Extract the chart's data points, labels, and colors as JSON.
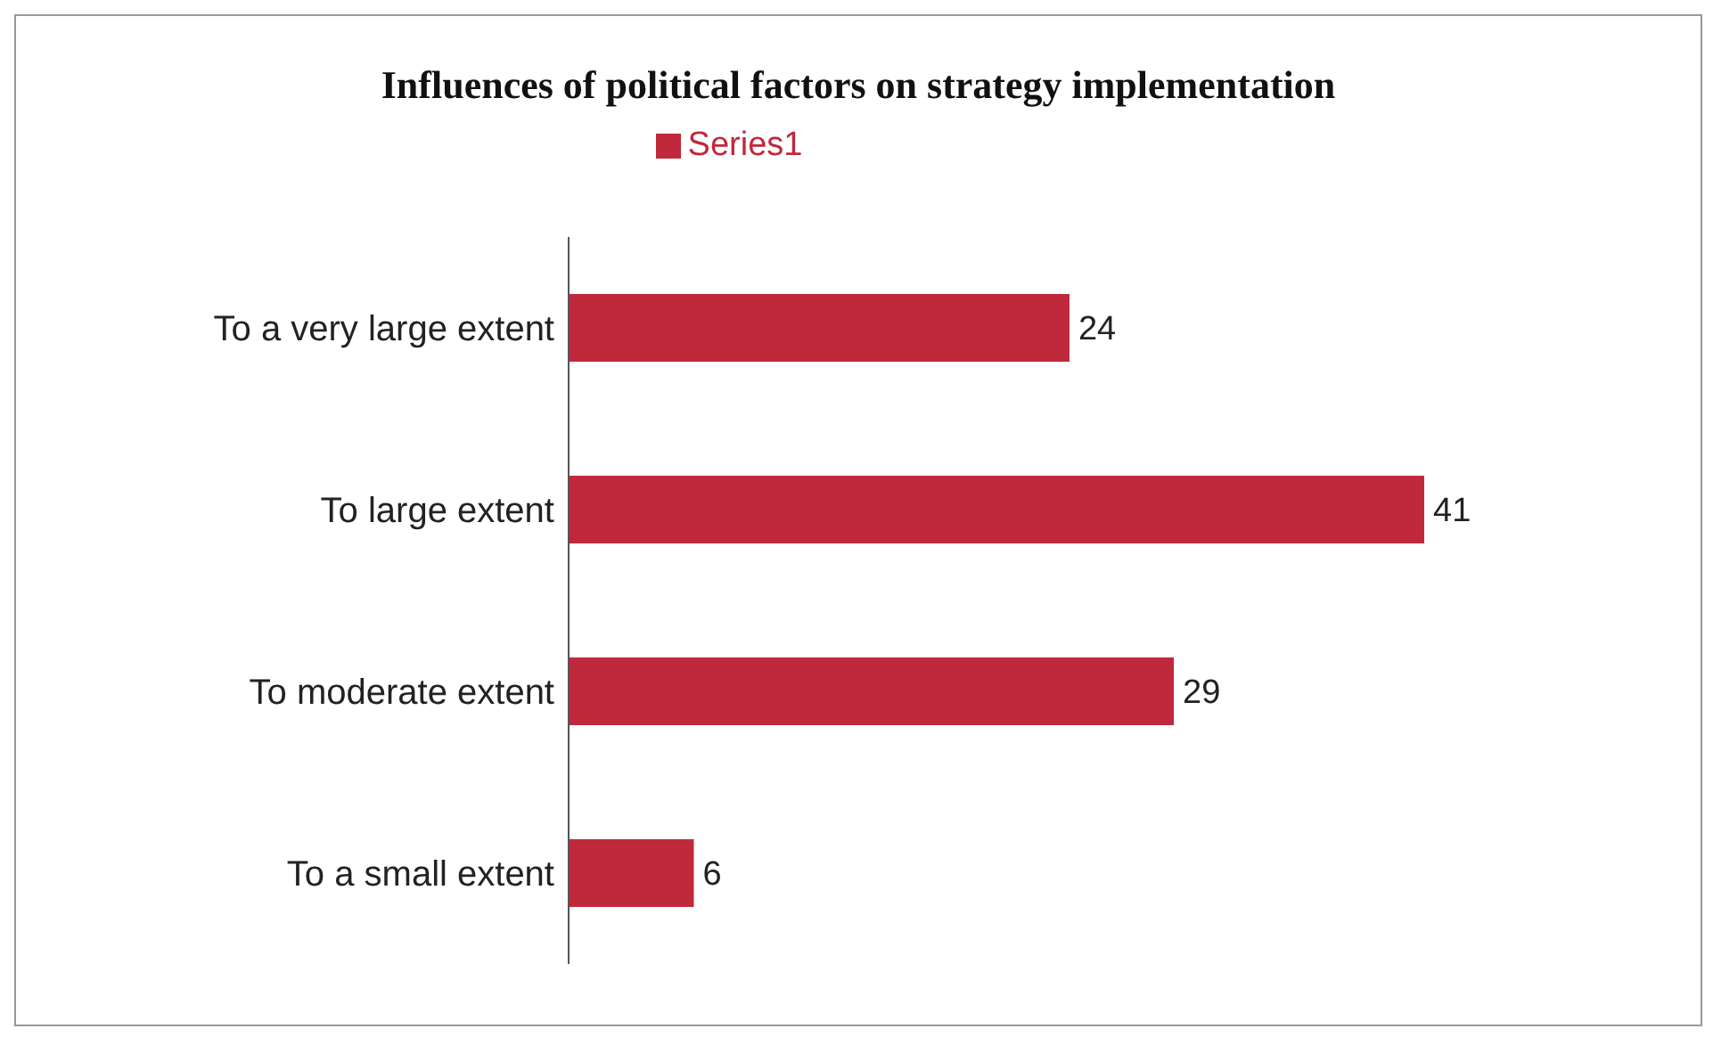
{
  "chart_data": {
    "type": "bar",
    "orientation": "horizontal",
    "title": "Influences of political factors on strategy implementation",
    "categories": [
      "To a very large extent",
      "To large extent",
      "To moderate extent",
      "To a small extent"
    ],
    "series": [
      {
        "name": "Series1",
        "color": "#c0283c",
        "values": [
          24,
          41,
          29,
          6
        ]
      }
    ],
    "data_labels": true,
    "legend": "top",
    "tick_labels": "y"
  }
}
